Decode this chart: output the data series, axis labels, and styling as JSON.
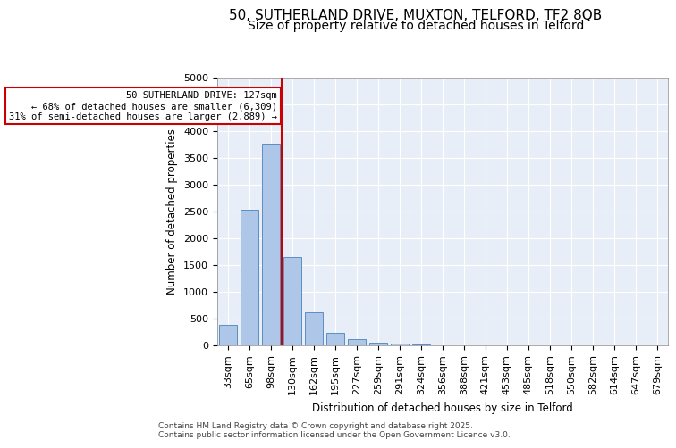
{
  "title1": "50, SUTHERLAND DRIVE, MUXTON, TELFORD, TF2 8QB",
  "title2": "Size of property relative to detached houses in Telford",
  "xlabel": "Distribution of detached houses by size in Telford",
  "ylabel": "Number of detached properties",
  "categories": [
    "33sqm",
    "65sqm",
    "98sqm",
    "130sqm",
    "162sqm",
    "195sqm",
    "227sqm",
    "259sqm",
    "291sqm",
    "324sqm",
    "356sqm",
    "388sqm",
    "421sqm",
    "453sqm",
    "485sqm",
    "518sqm",
    "550sqm",
    "582sqm",
    "614sqm",
    "647sqm",
    "679sqm"
  ],
  "values": [
    380,
    2540,
    3760,
    1650,
    620,
    235,
    110,
    55,
    40,
    25,
    8,
    3,
    2,
    1,
    1,
    0,
    0,
    0,
    0,
    0,
    0
  ],
  "bar_color": "#aec6e8",
  "bar_edge_color": "#5a8fc2",
  "vline_color": "#cc0000",
  "annotation_text": "50 SUTHERLAND DRIVE: 127sqm\n← 68% of detached houses are smaller (6,309)\n31% of semi-detached houses are larger (2,889) →",
  "annotation_box_color": "#ffffff",
  "annotation_box_edge": "#cc0000",
  "yticks": [
    0,
    500,
    1000,
    1500,
    2000,
    2500,
    3000,
    3500,
    4000,
    4500,
    5000
  ],
  "ylim": [
    0,
    5000
  ],
  "plot_bg_color": "#e8eef7",
  "footer1": "Contains HM Land Registry data © Crown copyright and database right 2025.",
  "footer2": "Contains public sector information licensed under the Open Government Licence v3.0.",
  "title_fontsize": 11,
  "subtitle_fontsize": 10,
  "axis_label_fontsize": 8.5,
  "tick_fontsize": 8,
  "footer_fontsize": 6.5
}
